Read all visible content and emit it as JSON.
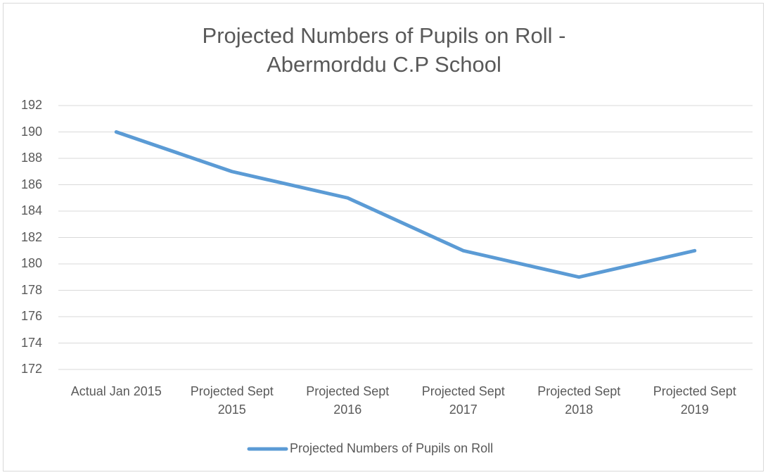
{
  "chart_data": {
    "type": "line",
    "title": "Projected Numbers of Pupils on Roll - Abermorddu C.P School",
    "categories": [
      "Actual Jan 2015",
      "Projected Sept 2015",
      "Projected Sept 2016",
      "Projected Sept 2017",
      "Projected Sept 2018",
      "Projected Sept 2019"
    ],
    "series": [
      {
        "name": "Projected Numbers of Pupils on Roll",
        "color": "#5b9bd5",
        "values": [
          190,
          187,
          185,
          181,
          179,
          181
        ]
      }
    ],
    "ylim": [
      172,
      192
    ],
    "yticks": [
      172,
      174,
      176,
      178,
      180,
      182,
      184,
      186,
      188,
      190,
      192
    ],
    "grid": true,
    "legend": "bottom"
  }
}
